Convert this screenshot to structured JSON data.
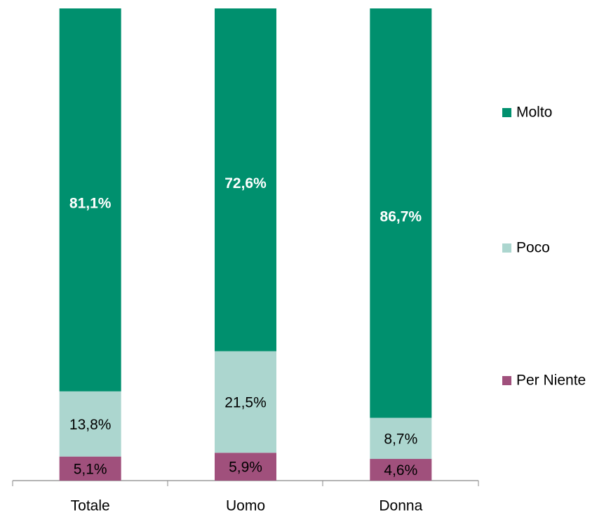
{
  "chart_data": {
    "type": "stacked_bar",
    "categories": [
      "Totale",
      "Uomo",
      "Donna"
    ],
    "series": [
      {
        "name": "Per Niente",
        "color": "#a0507c",
        "values": [
          5.1,
          5.9,
          4.6
        ],
        "value_labels": [
          "5,1%",
          "5,9%",
          "4,6%"
        ]
      },
      {
        "name": "Poco",
        "color": "#acd6cf",
        "values": [
          13.8,
          21.5,
          8.7
        ],
        "value_labels": [
          "13,8%",
          "21,5%",
          "8,7%"
        ]
      },
      {
        "name": "Molto",
        "color": "#00906e",
        "values": [
          81.1,
          72.6,
          86.7
        ],
        "value_labels": [
          "81,1%",
          "72,6%",
          "86,7%"
        ]
      }
    ],
    "legend": "right"
  }
}
